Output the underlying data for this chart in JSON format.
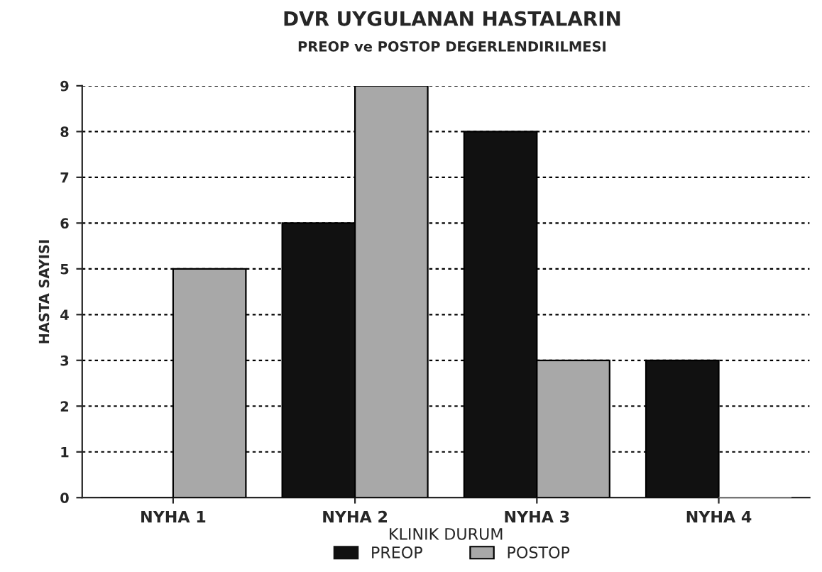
{
  "chart_data": {
    "type": "bar",
    "title": "DVR UYGULANAN HASTALARIN",
    "subtitle": "PREOP ve POSTOP DEGERLENDIRILMESI",
    "xlabel": "KLINIK DURUM",
    "ylabel": "HASTA SAYISI",
    "categories": [
      "NYHA 1",
      "NYHA 2",
      "NYHA 3",
      "NYHA 4"
    ],
    "series": [
      {
        "name": "PREOP",
        "color": "#111111",
        "values": [
          0,
          6,
          8,
          3
        ]
      },
      {
        "name": "POSTOP",
        "color": "#a8a8a8",
        "values": [
          5,
          9,
          3,
          0
        ]
      }
    ],
    "ylim": [
      0,
      9
    ],
    "yticks": [
      0,
      1,
      2,
      3,
      4,
      5,
      6,
      7,
      8,
      9
    ],
    "grid": "y",
    "legend": "bottom"
  }
}
